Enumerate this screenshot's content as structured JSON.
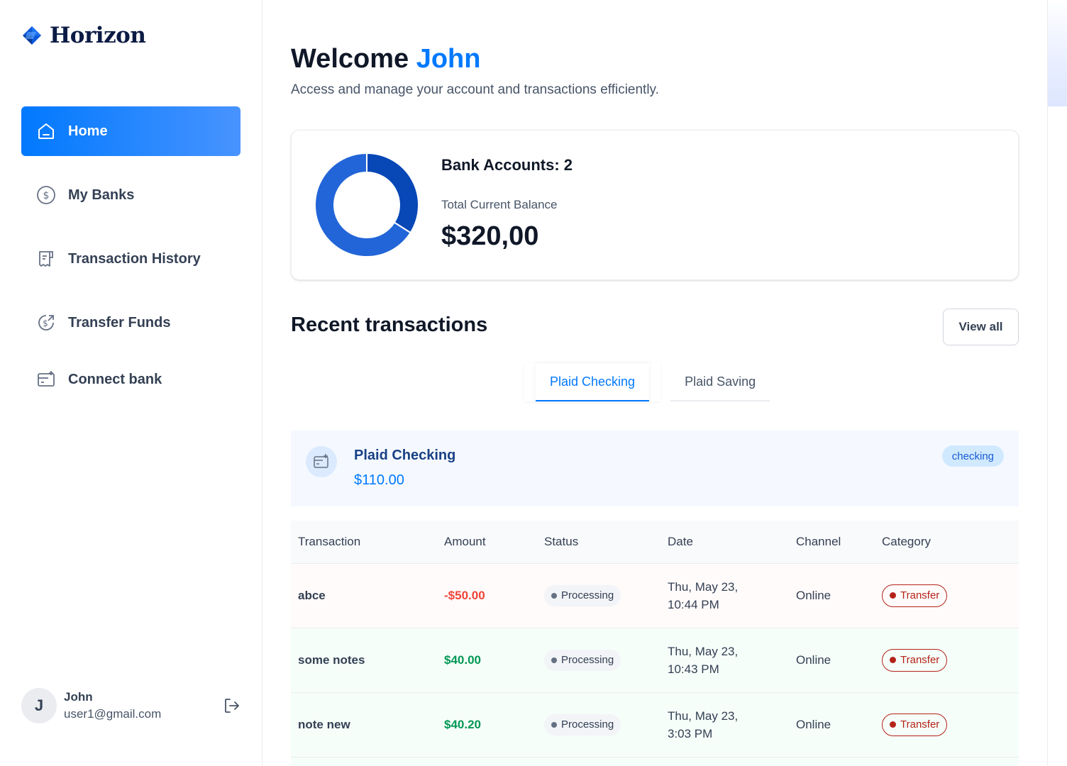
{
  "app": {
    "name": "Horizon"
  },
  "sidebar": {
    "items": [
      {
        "label": "Home",
        "icon": "home-icon",
        "active": true
      },
      {
        "label": "My Banks",
        "icon": "dollar-circle-icon",
        "active": false
      },
      {
        "label": "Transaction History",
        "icon": "receipt-icon",
        "active": false
      },
      {
        "label": "Transfer Funds",
        "icon": "money-send-icon",
        "active": false
      },
      {
        "label": "Connect bank",
        "icon": "card-add-icon",
        "active": false
      }
    ]
  },
  "user": {
    "initial": "J",
    "name": "John",
    "email": "user1@gmail.com"
  },
  "header": {
    "welcome_prefix": "Welcome",
    "welcome_name": "John",
    "subtitle": "Access and manage your account and transactions efficiently."
  },
  "balance": {
    "bank_accounts": "Bank Accounts: 2",
    "label": "Total Current Balance",
    "value": "$320,00",
    "donut_shares": [
      0.34,
      0.66
    ],
    "donut_colors": [
      "#0747b6",
      "#2265d8"
    ]
  },
  "recent": {
    "title": "Recent transactions",
    "view_all": "View all",
    "tabs": [
      "Plaid Checking",
      "Plaid Saving"
    ],
    "account": {
      "name": "Plaid Checking",
      "balance": "$110.00",
      "badge": "checking"
    },
    "columns": [
      "Transaction",
      "Amount",
      "Status",
      "Date",
      "Channel",
      "Category"
    ],
    "rows": [
      {
        "name": "abce",
        "amount": "-$50.00",
        "type": "debit",
        "status": "Processing",
        "date_line1": "Thu, May 23,",
        "date_line2": "10:44 PM",
        "channel": "Online",
        "category": "Transfer"
      },
      {
        "name": "some notes",
        "amount": "$40.00",
        "type": "credit",
        "status": "Processing",
        "date_line1": "Thu, May 23,",
        "date_line2": "10:43 PM",
        "channel": "Online",
        "category": "Transfer"
      },
      {
        "name": "note new",
        "amount": "$40.20",
        "type": "credit",
        "status": "Processing",
        "date_line1": "Thu, May 23,",
        "date_line2": "3:03 PM",
        "channel": "Online",
        "category": "Transfer"
      }
    ]
  },
  "colors": {
    "primary": "#0179fe",
    "debit": "#f04438",
    "credit": "#039855",
    "category": "#b42318"
  }
}
